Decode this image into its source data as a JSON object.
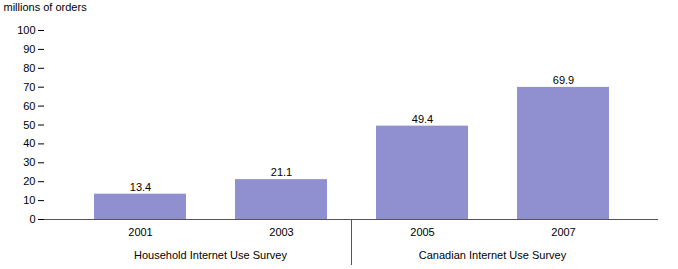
{
  "chart_data": {
    "type": "bar",
    "categories": [
      "2001",
      "2003",
      "2005",
      "2007"
    ],
    "values": [
      13.4,
      21.1,
      49.4,
      69.9
    ],
    "color": "#9090d0",
    "ylabel": "millions of orders",
    "ylim": [
      0,
      100
    ],
    "yticks": [
      0,
      10,
      20,
      30,
      40,
      50,
      60,
      70,
      80,
      90,
      100
    ],
    "grid": false,
    "data_labels": true,
    "annotations": [
      {
        "text": "Household Internet Use Survey",
        "categories": [
          "2001",
          "2003"
        ]
      },
      {
        "text": "Canadian Internet Use Survey",
        "categories": [
          "2005",
          "2007"
        ]
      }
    ]
  }
}
